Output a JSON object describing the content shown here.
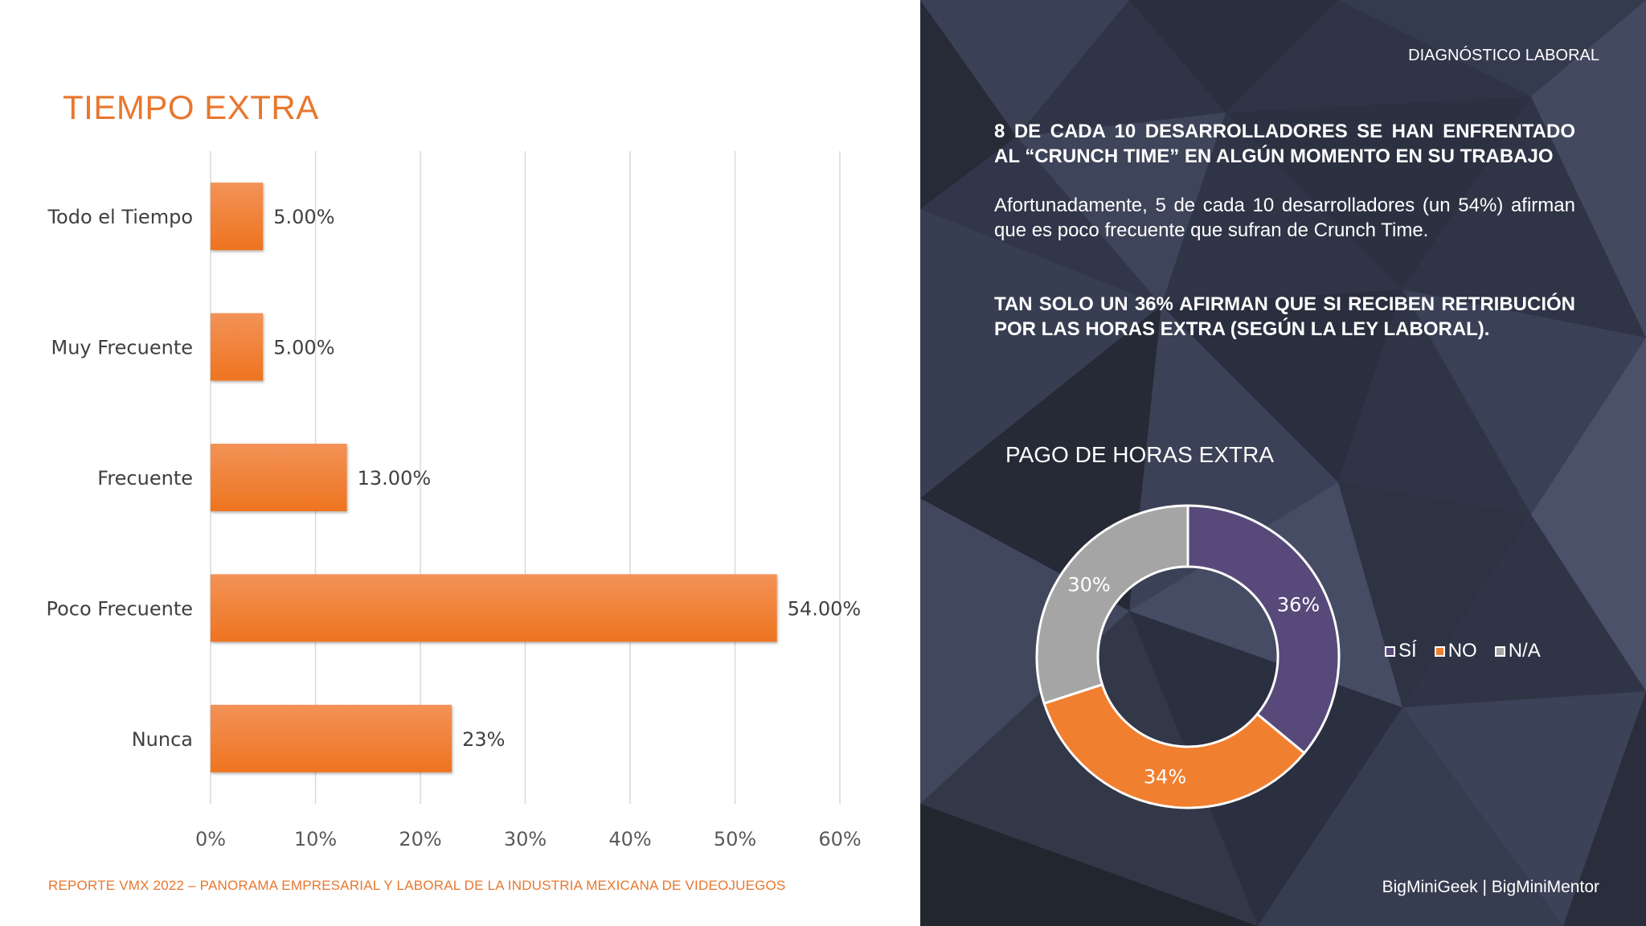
{
  "left": {
    "title": "TIEMPO EXTRA",
    "footer": "REPORTE VMX 2022 – PANORAMA EMPRESARIAL Y LABORAL DE LA INDUSTRIA MEXICANA DE VIDEOJUEGOS"
  },
  "right": {
    "section_tag": "DIAGNÓSTICO LABORAL",
    "headline1": "8 DE CADA 10 DESARROLLADORES SE HAN ENFRENTADO AL “CRUNCH TIME” EN ALGÚN MOMENTO EN SU TRABAJO",
    "paragraph1": "Afortunadamente, 5 de cada 10 desarrolladores (un 54%) afirman que es poco frecuente que sufran de Crunch Time.",
    "headline2": "TAN SOLO UN 36% AFIRMAN QUE SI RECIBEN RETRIBUCIÓN POR LAS HORAS EXTRA (SEGÚN LA LEY LABORAL).",
    "credits": "BigMiniGeek | BigMiniMentor"
  },
  "colors": {
    "accent": "#e8772e",
    "bar": "#f07f2f",
    "purple": "#574a7a",
    "orange": "#f07f2f",
    "gray": "#a5a5a5",
    "background_dark": "#2f3446"
  },
  "chart_data": [
    {
      "type": "bar",
      "orientation": "horizontal",
      "title": "TIEMPO EXTRA",
      "categories": [
        "Todo el Tiempo",
        "Muy Frecuente",
        "Frecuente",
        "Poco Frecuente",
        "Nunca"
      ],
      "values": [
        5,
        5,
        13,
        54,
        23
      ],
      "labels": [
        "5.00%",
        "5.00%",
        "13.00%",
        "54.00%",
        "23%"
      ],
      "xlim": [
        0,
        60
      ],
      "xticks": [
        "0%",
        "10%",
        "20%",
        "30%",
        "40%",
        "50%",
        "60%"
      ],
      "grid": true
    },
    {
      "type": "pie",
      "donut": true,
      "title": "PAGO DE HORAS EXTRA",
      "categories": [
        "SÍ",
        "NO",
        "N/A"
      ],
      "values": [
        36,
        34,
        30
      ],
      "labels": [
        "36%",
        "34%",
        "30%"
      ],
      "colors": [
        "#574a7a",
        "#f07f2f",
        "#a5a5a5"
      ],
      "legend": "right"
    }
  ]
}
